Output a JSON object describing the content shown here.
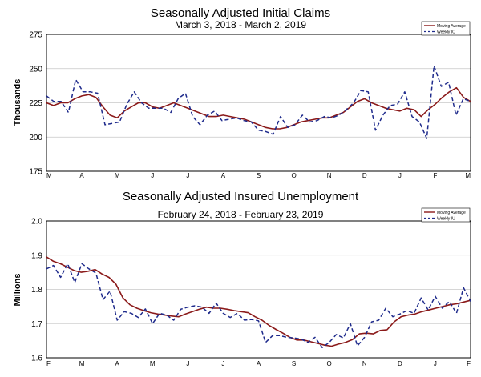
{
  "chart_data": [
    {
      "type": "line",
      "title": "Seasonally Adjusted Initial Claims",
      "subtitle": "March 3, 2018 - March 2, 2019",
      "ylabel": "Thousands",
      "ylim": [
        175,
        275
      ],
      "yticks": [
        175,
        200,
        225,
        250,
        275
      ],
      "xticks": [
        "M",
        "A",
        "M",
        "J",
        "J",
        "A",
        "S",
        "O",
        "N",
        "D",
        "J",
        "F",
        "M"
      ],
      "grid": true,
      "legend": "top-right",
      "series": [
        {
          "name": "Moving Average",
          "color": "#8b1a1a",
          "style": "solid",
          "values": [
            225,
            223,
            225,
            225,
            228,
            230,
            231,
            229,
            222,
            216,
            214,
            219,
            222,
            225,
            225,
            222,
            221,
            223,
            225,
            223,
            221,
            219,
            217,
            215,
            215,
            216,
            215,
            214,
            213,
            211,
            209,
            207,
            206,
            206,
            207,
            209,
            211,
            212,
            213,
            214,
            214,
            216,
            218,
            222,
            226,
            228,
            225,
            223,
            221,
            220,
            219,
            221,
            220,
            215,
            220,
            224,
            229,
            233,
            236,
            229,
            226
          ]
        },
        {
          "name": "Weekly IC",
          "color": "#1f2b8c",
          "style": "dashed",
          "values": [
            230,
            226,
            226,
            218,
            242,
            233,
            233,
            232,
            209,
            210,
            211,
            224,
            233,
            225,
            221,
            221,
            221,
            218,
            228,
            232,
            215,
            209,
            216,
            219,
            212,
            213,
            214,
            212,
            211,
            205,
            204,
            202,
            215,
            207,
            209,
            216,
            211,
            212,
            215,
            214,
            216,
            220,
            225,
            234,
            233,
            205,
            216,
            223,
            224,
            233,
            215,
            211,
            199,
            252,
            237,
            240,
            216,
            228,
            226
          ]
        }
      ]
    },
    {
      "type": "line",
      "title": "Seasonally Adjusted Insured Unemployment",
      "subtitle": "February 24, 2018 - February 23, 2019",
      "ylabel": "Millions",
      "ylim": [
        1.6,
        2.0
      ],
      "yticks": [
        "1.6",
        "1.7",
        "1.8",
        "1.9",
        "2.0"
      ],
      "xticks": [
        "F",
        "M",
        "A",
        "M",
        "J",
        "J",
        "A",
        "S",
        "O",
        "N",
        "D",
        "J",
        "F"
      ],
      "grid": true,
      "legend": "top-right",
      "series": [
        {
          "name": "Moving Average",
          "color": "#8b1a1a",
          "style": "solid",
          "values": [
            1.895,
            1.882,
            1.875,
            1.865,
            1.855,
            1.85,
            1.853,
            1.858,
            1.845,
            1.835,
            1.815,
            1.775,
            1.755,
            1.745,
            1.738,
            1.732,
            1.728,
            1.725,
            1.722,
            1.72,
            1.728,
            1.735,
            1.742,
            1.748,
            1.745,
            1.745,
            1.742,
            1.738,
            1.735,
            1.732,
            1.72,
            1.71,
            1.695,
            1.683,
            1.672,
            1.66,
            1.652,
            1.652,
            1.647,
            1.642,
            1.637,
            1.634,
            1.64,
            1.645,
            1.653,
            1.67,
            1.672,
            1.67,
            1.68,
            1.682,
            1.705,
            1.72,
            1.725,
            1.728,
            1.735,
            1.74,
            1.745,
            1.75,
            1.755,
            1.758,
            1.763,
            1.768
          ]
        },
        {
          "name": "Weekly IU",
          "color": "#1f2b8c",
          "style": "dashed",
          "values": [
            1.86,
            1.87,
            1.835,
            1.875,
            1.82,
            1.875,
            1.86,
            1.848,
            1.77,
            1.795,
            1.71,
            1.735,
            1.73,
            1.718,
            1.743,
            1.7,
            1.73,
            1.725,
            1.71,
            1.742,
            1.748,
            1.752,
            1.748,
            1.73,
            1.76,
            1.73,
            1.718,
            1.73,
            1.71,
            1.712,
            1.708,
            1.645,
            1.665,
            1.665,
            1.66,
            1.658,
            1.655,
            1.645,
            1.66,
            1.63,
            1.645,
            1.668,
            1.658,
            1.7,
            1.635,
            1.66,
            1.705,
            1.71,
            1.745,
            1.72,
            1.728,
            1.738,
            1.73,
            1.775,
            1.74,
            1.78,
            1.745,
            1.765,
            1.73,
            1.805,
            1.765
          ]
        }
      ]
    }
  ]
}
